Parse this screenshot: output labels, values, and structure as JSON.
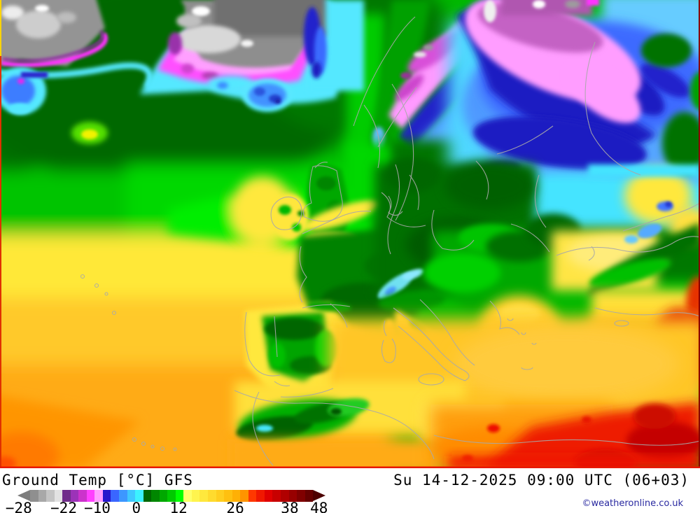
{
  "footer": {
    "title": "Ground Temp [°C] GFS",
    "datetime": "Su 14-12-2025 09:00 UTC (06+03)",
    "copyright": "©weatheronline.co.uk"
  },
  "legend": {
    "unit": "°C",
    "min": -28,
    "max": 48,
    "tick_values": [
      -28,
      -22,
      -10,
      0,
      12,
      26,
      38,
      48
    ],
    "ticks": [
      {
        "label": "−28",
        "pos_pct": 0.4
      },
      {
        "label": "−22",
        "pos_pct": 15.0
      },
      {
        "label": "−10",
        "pos_pct": 25.9
      },
      {
        "label": "0",
        "pos_pct": 38.6
      },
      {
        "label": "12",
        "pos_pct": 52.3
      },
      {
        "label": "26",
        "pos_pct": 70.7
      },
      {
        "label": "38",
        "pos_pct": 88.4
      },
      {
        "label": "48",
        "pos_pct": 97.9
      }
    ],
    "segment_colors": [
      "#8f8f8f",
      "#a8a8a8",
      "#c4c4c4",
      "#e2e2e2",
      "#702d8a",
      "#9c33b8",
      "#cc33cc",
      "#ff40ff",
      "#ff9eff",
      "#2417cc",
      "#3a66ff",
      "#3d97ff",
      "#3fc8ff",
      "#3cf2ff",
      "#006600",
      "#008700",
      "#00a800",
      "#00c900",
      "#00ff00",
      "#ffff6b",
      "#fff44e",
      "#ffe83d",
      "#ffdb2e",
      "#ffce1f",
      "#ffc010",
      "#ffb005",
      "#ff9400",
      "#ff3800",
      "#f01800",
      "#e00000",
      "#c80000",
      "#b00000",
      "#980000",
      "#800000",
      "#660000"
    ],
    "left_arrow_color": "#7d7d7d",
    "right_arrow_color": "#4d0000",
    "color_groups": [
      {
        "range": "below -22",
        "color_family": "gray"
      },
      {
        "range": "-22 to -10",
        "color_family": "purple-magenta"
      },
      {
        "range": "-10 to 0",
        "color_family": "blue-cyan"
      },
      {
        "range": "0 to 12",
        "color_family": "green"
      },
      {
        "range": "12 to 26",
        "color_family": "yellow-orange"
      },
      {
        "range": "26 to 48",
        "color_family": "red-darkred"
      }
    ]
  },
  "map": {
    "kind": "ground-temperature-field",
    "model": "GFS",
    "region": "Europe / North Atlantic / North Africa",
    "palette": {
      "ocean_green": "#00b800",
      "cold_pink": "#ff9dff",
      "cold_darkblue": "#1d1dc2",
      "cold_cyan": "#44e4ff",
      "warm_yellow": "#ffe83d",
      "warm_orange": "#ffab17",
      "hot_red": "#ee1c00",
      "terrain_gray": "#8e8e8e",
      "border_gray": "#a9a9a9",
      "frame_red": "#e03000"
    }
  }
}
